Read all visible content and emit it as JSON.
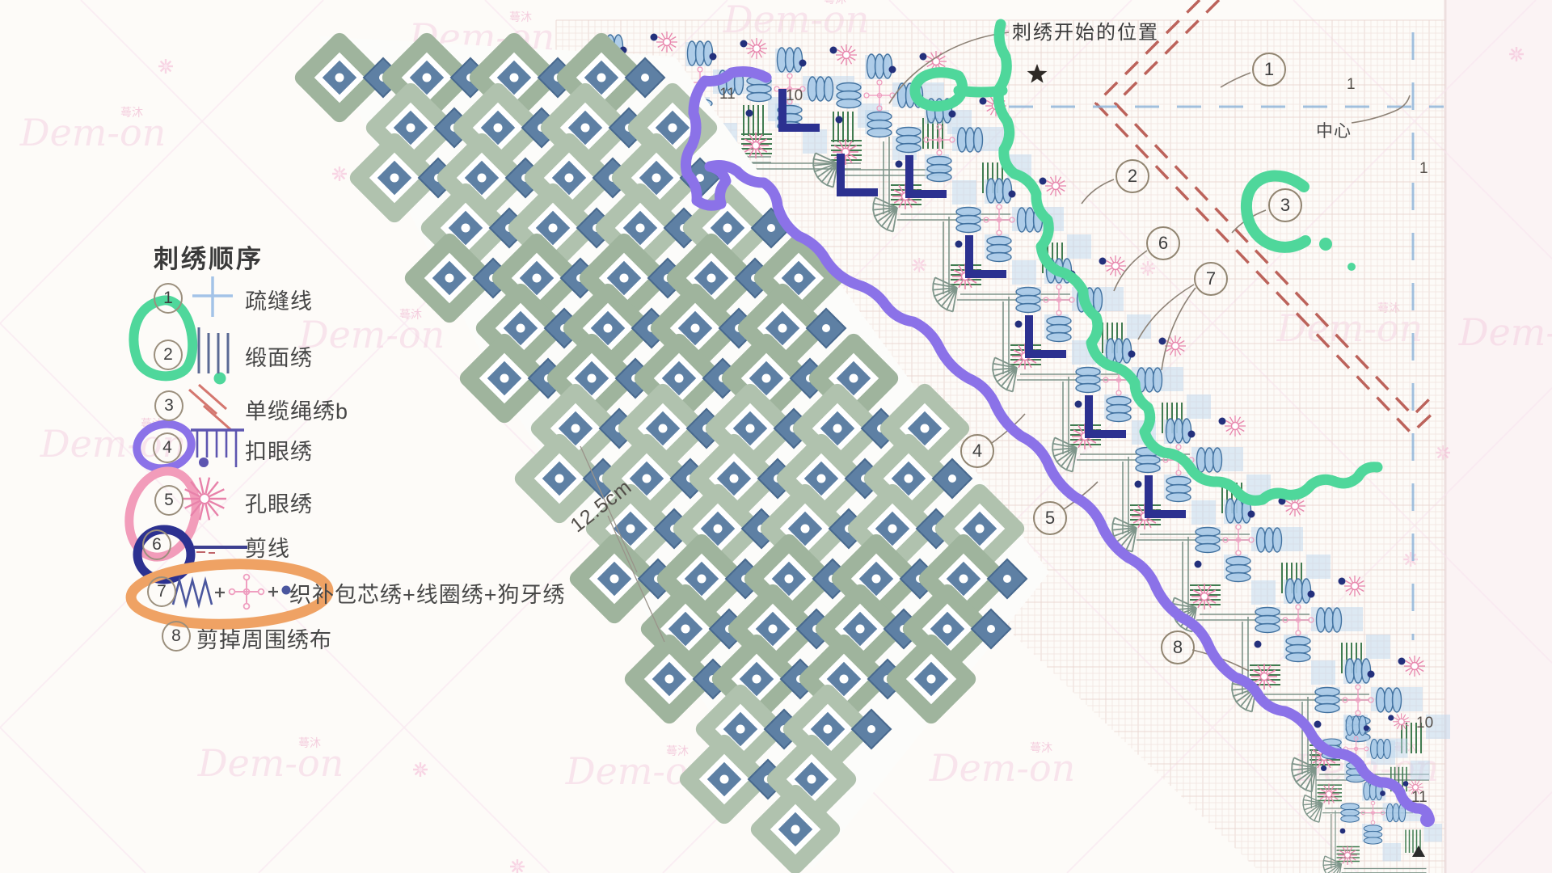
{
  "legend": {
    "title": "刺绣顺序",
    "items": [
      {
        "num": "1",
        "label": "疏缝线",
        "symbol": "basting-cross"
      },
      {
        "num": "2",
        "label": "缎面绣",
        "symbol": "satin-stitch-bars"
      },
      {
        "num": "3",
        "label": "单缆绳绣b",
        "symbol": "cable-stitch-diagonals"
      },
      {
        "num": "4",
        "label": "扣眼绣",
        "symbol": "buttonhole-stitch"
      },
      {
        "num": "5",
        "label": "孔眼绣",
        "symbol": "eyelet-star"
      },
      {
        "num": "6",
        "label": "剪线",
        "symbol": "cut-thread-line"
      },
      {
        "num": "7",
        "label": "织补包芯绣+线圈绣+狗牙绣",
        "symbol": "woven-bar-plus-loop-plus-picot"
      },
      {
        "num": "8",
        "label": "剪掉周围绣布",
        "symbol": "none"
      }
    ]
  },
  "chart": {
    "start_label": "刺绣开始的位置",
    "center_label": "中心",
    "dimension_label": "12.5cm",
    "grid_numbers": {
      "top": [
        "11",
        "10"
      ],
      "spacing": [
        "1",
        "1"
      ],
      "bottom_right": [
        "10",
        "11"
      ]
    },
    "refs": [
      "1",
      "2",
      "3",
      "6",
      "7",
      "4",
      "5",
      "8"
    ],
    "star_marker": "★",
    "corner_marker": "▲"
  },
  "watermark": {
    "text": "Dem-on",
    "cjk": "蕚沐"
  },
  "colors": {
    "pageBg": "#fdfbf8",
    "margin": "#fbf3f4",
    "edge": "#eddfdf",
    "gridLine": "#f3e5e1",
    "gridAccent": "#ead6d0",
    "redDash": "#b5534b",
    "blueDash": "#92b6da",
    "barStroke": "#41719f",
    "barFill": "#a6c8e6",
    "checker": "#bdd7ee",
    "navy": "#23307c",
    "chartPink": "#e886ad",
    "chartGreen": "#417c51",
    "scallop": "#7e958a",
    "leader": "#8d8276",
    "photoSage": "#b0c2ae",
    "photoSage2": "#9fb49d",
    "photoBlue": "#5e80a4",
    "photoBlue2": "#48698e",
    "mkGreen": "#4fd79b",
    "mkPurple": "#8b72e8",
    "mkPink": "#f29cba",
    "mkNavy": "#2c3190",
    "mkOrange": "#efa264",
    "wmPink": "#f1c3da",
    "wmLine": "#f8e5ef",
    "legendBlue": "#a3c3e8",
    "legendBars": "#5a6a94",
    "legendRed": "#d4766e",
    "legendPurple": "#5d55b0",
    "legendPink": "#e882aa",
    "legendNavy": "#3c3f90",
    "legendZigzag": "#4a569e",
    "dimLine": "#9a938a",
    "ink": "#2e2a26"
  }
}
